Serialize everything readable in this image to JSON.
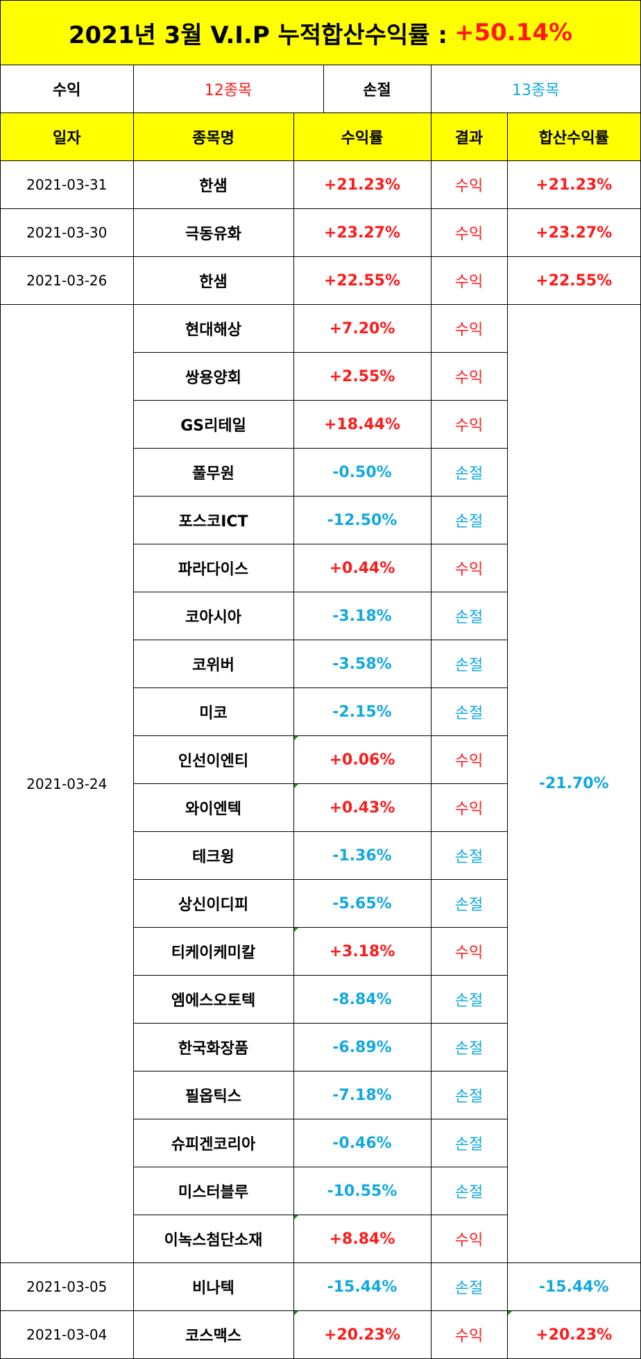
{
  "title": {
    "text": "2021년 3월 V.I.P 누적합산수익률 :",
    "total": "+50.14%"
  },
  "summary": {
    "profit_label": "수익",
    "profit_count": "12종목",
    "loss_label": "손절",
    "loss_count": "13종목"
  },
  "headers": {
    "date": "일자",
    "name": "종목명",
    "rate": "수익률",
    "result": "결과",
    "total": "합산수익률"
  },
  "groups": [
    {
      "date": "2021-03-31",
      "total": "+21.23%",
      "total_sign": "pos",
      "rows": [
        {
          "name": "한샘",
          "rate": "+21.23%",
          "result": "수익",
          "sign": "pos"
        }
      ]
    },
    {
      "date": "2021-03-30",
      "total": "+23.27%",
      "total_sign": "pos",
      "rows": [
        {
          "name": "극동유화",
          "rate": "+23.27%",
          "result": "수익",
          "sign": "pos"
        }
      ]
    },
    {
      "date": "2021-03-26",
      "total": "+22.55%",
      "total_sign": "pos",
      "rows": [
        {
          "name": "한샘",
          "rate": "+22.55%",
          "result": "수익",
          "sign": "pos"
        }
      ]
    },
    {
      "date": "2021-03-24",
      "total": "-21.70%",
      "total_sign": "neg",
      "rows": [
        {
          "name": "현대해상",
          "rate": "+7.20%",
          "result": "수익",
          "sign": "pos"
        },
        {
          "name": "쌍용양회",
          "rate": "+2.55%",
          "result": "수익",
          "sign": "pos"
        },
        {
          "name": "GS리테일",
          "rate": "+18.44%",
          "result": "수익",
          "sign": "pos"
        },
        {
          "name": "풀무원",
          "rate": "-0.50%",
          "result": "손절",
          "sign": "neg"
        },
        {
          "name": "포스코ICT",
          "rate": "-12.50%",
          "result": "손절",
          "sign": "neg"
        },
        {
          "name": "파라다이스",
          "rate": "+0.44%",
          "result": "수익",
          "sign": "pos"
        },
        {
          "name": "코아시아",
          "rate": "-3.18%",
          "result": "손절",
          "sign": "neg"
        },
        {
          "name": "코위버",
          "rate": "-3.58%",
          "result": "손절",
          "sign": "neg"
        },
        {
          "name": "미코",
          "rate": "-2.15%",
          "result": "손절",
          "sign": "neg"
        },
        {
          "name": "인선이엔티",
          "rate": "+0.06%",
          "result": "수익",
          "sign": "pos"
        },
        {
          "name": "와이엔텍",
          "rate": "+0.43%",
          "result": "수익",
          "sign": "pos"
        },
        {
          "name": "테크윙",
          "rate": "-1.36%",
          "result": "손절",
          "sign": "neg"
        },
        {
          "name": "상신이디피",
          "rate": "-5.65%",
          "result": "손절",
          "sign": "neg"
        },
        {
          "name": "티케이케미칼",
          "rate": "+3.18%",
          "result": "수익",
          "sign": "pos"
        },
        {
          "name": "엠에스오토텍",
          "rate": "-8.84%",
          "result": "손절",
          "sign": "neg"
        },
        {
          "name": "한국화장품",
          "rate": "-6.89%",
          "result": "손절",
          "sign": "neg"
        },
        {
          "name": "필옵틱스",
          "rate": "-7.18%",
          "result": "손절",
          "sign": "neg"
        },
        {
          "name": "슈피겐코리아",
          "rate": "-0.46%",
          "result": "손절",
          "sign": "neg"
        },
        {
          "name": "미스터블루",
          "rate": "-10.55%",
          "result": "손절",
          "sign": "neg"
        },
        {
          "name": "이녹스첨단소재",
          "rate": "+8.84%",
          "result": "수익",
          "sign": "pos"
        }
      ]
    },
    {
      "date": "2021-03-05",
      "total": "-15.44%",
      "total_sign": "neg",
      "rows": [
        {
          "name": "비나텍",
          "rate": "-15.44%",
          "result": "손절",
          "sign": "neg"
        }
      ]
    },
    {
      "date": "2021-03-04",
      "total": "+20.23%",
      "total_sign": "pos",
      "rows": [
        {
          "name": "코스맥스",
          "rate": "+20.23%",
          "result": "수익",
          "sign": "pos"
        }
      ]
    }
  ],
  "colors": {
    "positive": "#ff1a1a",
    "negative": "#11a8e0",
    "header_bg": "#ffff00"
  }
}
